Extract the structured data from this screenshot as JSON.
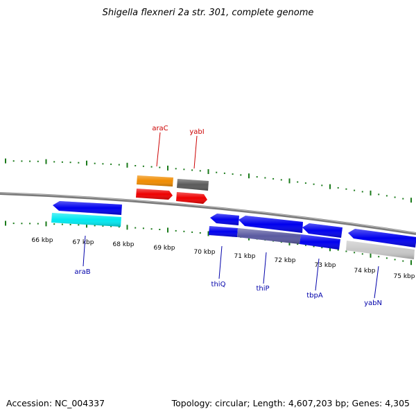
{
  "title": "Shigella flexneri 2a str. 301, complete genome",
  "accession": "Accession: NC_004337",
  "summary": "Topology: circular; Length: 4,607,203 bp; Genes: 4,305",
  "colors": {
    "backbone": "#7a7a7a",
    "ticks": "#1a7a1a",
    "forward_label": "#cc0000",
    "reverse_label": "#0000aa",
    "gene_blue": "#0000ee",
    "gene_cyan": "#00e8f0",
    "gene_orange": "#f08c00",
    "gene_red": "#ee0000",
    "gene_dark_gray": "#5a5a5a",
    "gene_light_gray": "#c8c8c8",
    "gene_overlap": "#5a5aa0"
  },
  "kbp_labels": [
    "66 kbp",
    "67 kbp",
    "68 kbp",
    "69 kbp",
    "70 kbp",
    "71 kbp",
    "72 kbp",
    "73 kbp",
    "74 kbp",
    "75 kbp"
  ],
  "forward_genes": [
    {
      "label": "araC",
      "color": "#cc0000"
    },
    {
      "label": "yabI",
      "color": "#cc0000"
    }
  ],
  "reverse_genes": [
    {
      "label": "araB",
      "color": "#0000aa"
    },
    {
      "label": "thiQ",
      "color": "#0000aa"
    },
    {
      "label": "thiP",
      "color": "#0000aa"
    },
    {
      "label": "tbpA",
      "color": "#0000aa"
    },
    {
      "label": "yabN",
      "color": "#0000aa"
    }
  ]
}
